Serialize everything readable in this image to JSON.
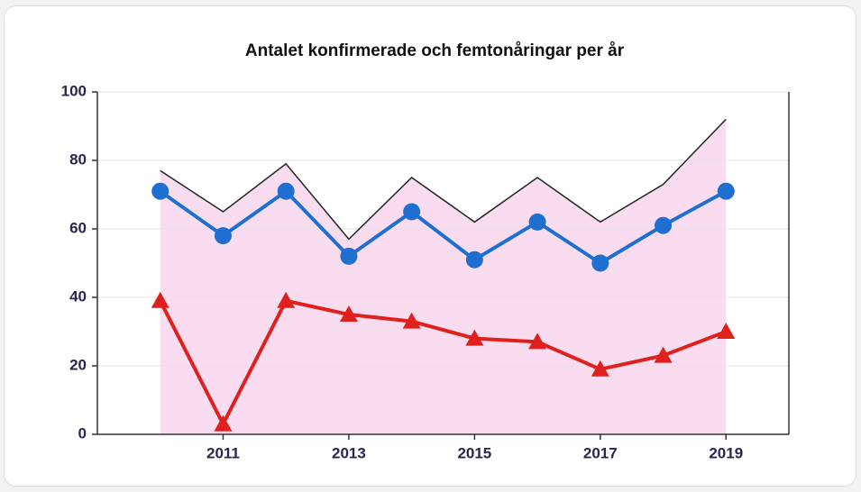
{
  "chart_data": {
    "type": "line",
    "title": "Antalet konfirmerade och femtonåringar per år",
    "x": [
      2010,
      2011,
      2012,
      2013,
      2014,
      2015,
      2016,
      2017,
      2018,
      2019
    ],
    "xlim": [
      2009,
      2020
    ],
    "xticks": [
      2011,
      2013,
      2015,
      2017,
      2019
    ],
    "ylim": [
      0,
      100
    ],
    "yticks": [
      0,
      20,
      40,
      60,
      80,
      100
    ],
    "grid": true,
    "series": [
      {
        "color": "#222222",
        "fill": "#f9dcf0",
        "marker": "none",
        "values": [
          77,
          65,
          79,
          57,
          75,
          62,
          75,
          62,
          73,
          92
        ]
      },
      {
        "color": "#1f6fd1",
        "marker": "circle",
        "values": [
          71,
          58,
          71,
          52,
          65,
          51,
          62,
          50,
          61,
          71
        ]
      },
      {
        "color": "#e0201c",
        "marker": "triangle",
        "values": [
          39,
          3,
          39,
          35,
          33,
          28,
          27,
          19,
          23,
          30
        ]
      }
    ]
  }
}
